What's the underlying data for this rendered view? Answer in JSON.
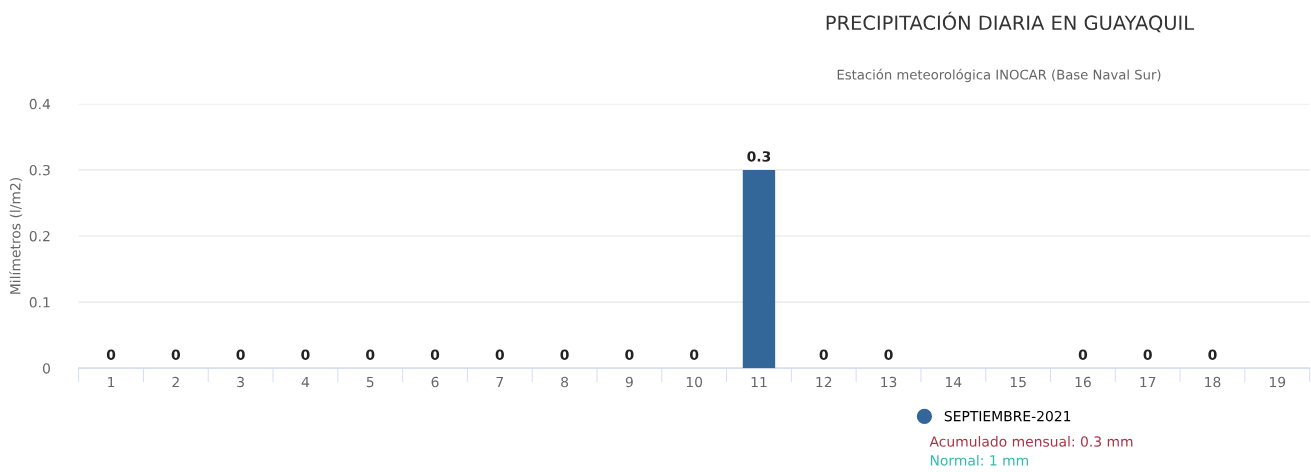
{
  "chart_data": {
    "type": "bar",
    "title": "PRECIPITACIÓN DIARIA EN GUAYAQUIL",
    "subtitle": "Estación meteorológica INOCAR (Base Naval Sur)",
    "ylabel": "Milímetros (l/m2)",
    "categories": [
      "1",
      "2",
      "3",
      "4",
      "5",
      "6",
      "7",
      "8",
      "9",
      "10",
      "11",
      "12",
      "13",
      "14",
      "15",
      "16",
      "17",
      "18",
      "19"
    ],
    "series": [
      {
        "name": "SEPTIEMBRE-2021",
        "color": "#336699",
        "values": [
          0,
          0,
          0,
          0,
          0,
          0,
          0,
          0,
          0,
          0,
          0.3,
          0,
          0,
          null,
          null,
          0,
          0,
          0,
          null
        ]
      }
    ],
    "ylim": [
      0,
      0.4
    ],
    "yticks": [
      0,
      0.1,
      0.2,
      0.3,
      0.4
    ],
    "grid": "y",
    "legend": "bottom",
    "data_labels": true,
    "annotations": [
      "Acumulado mensual: 0.3 mm",
      "Normal: 1 mm"
    ]
  }
}
